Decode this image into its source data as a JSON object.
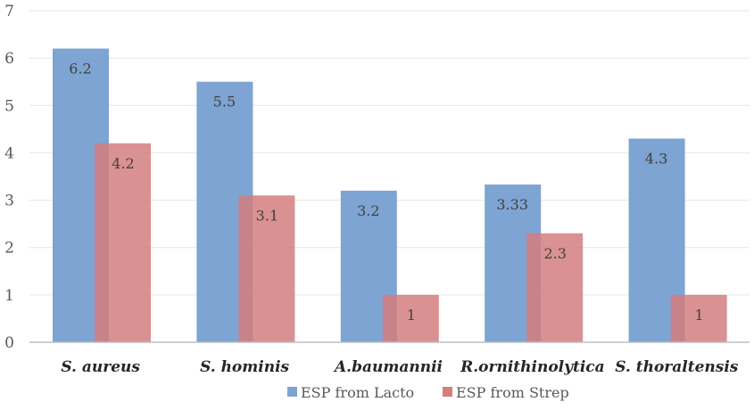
{
  "chart_data": {
    "type": "bar",
    "categories": [
      "S. aureus",
      "S. hominis",
      "A.baumannii",
      "R.ornithinolytica",
      "S. thoraltensis"
    ],
    "series": [
      {
        "name": "ESP from Lacto",
        "values": [
          6.2,
          5.5,
          3.2,
          3.33,
          4.3
        ],
        "labels": [
          "6.2",
          "5.5",
          "3.2",
          "3.33",
          "4.3"
        ],
        "color": "#7da4d3"
      },
      {
        "name": "ESP from Strep",
        "values": [
          4.2,
          3.1,
          1,
          2.3,
          1
        ],
        "labels": [
          "4.2",
          "3.1",
          "1",
          "2.3",
          "1"
        ],
        "color": "#d47e7e"
      }
    ],
    "ylim": [
      0,
      7
    ],
    "yticks": [
      "0",
      "1",
      "2",
      "3",
      "4",
      "5",
      "6",
      "7"
    ],
    "title": "",
    "xlabel": "",
    "ylabel": "",
    "grid": true,
    "legend_position": "bottom"
  }
}
